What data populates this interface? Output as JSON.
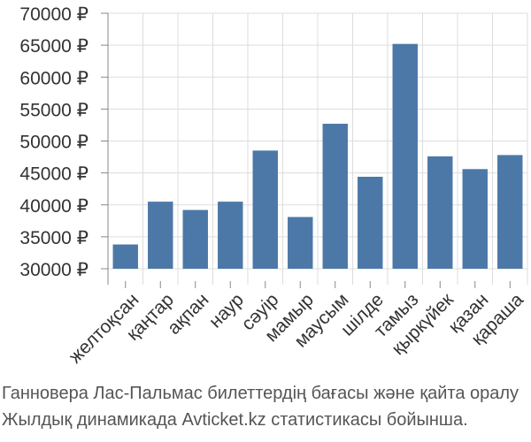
{
  "chart_data": {
    "type": "bar",
    "categories": [
      "желтоқсан",
      "қаңтар",
      "ақпан",
      "наур",
      "сәуір",
      "мамыр",
      "маусым",
      "шілде",
      "тамыз",
      "қыркүйек",
      "қазан",
      "қараша"
    ],
    "values": [
      33800,
      40500,
      39200,
      40500,
      48500,
      38100,
      52700,
      44400,
      65200,
      47600,
      45600,
      47800
    ],
    "yticks": [
      "30000 ₽",
      "35000 ₽",
      "40000 ₽",
      "45000 ₽",
      "50000 ₽",
      "55000 ₽",
      "60000 ₽",
      "65000 ₽",
      "70000 ₽"
    ],
    "ylim": [
      30000,
      70000
    ],
    "grid": true,
    "bar_color": "#4c78a8",
    "grid_color": "#dddddd",
    "axis_color": "#888888"
  },
  "caption": {
    "line1": "Ганновера Лас-Пальмас билеттердің бағасы және қайта оралу",
    "line2": "Жылдық динамикада Avticket.kz статистикасы бойынша."
  }
}
